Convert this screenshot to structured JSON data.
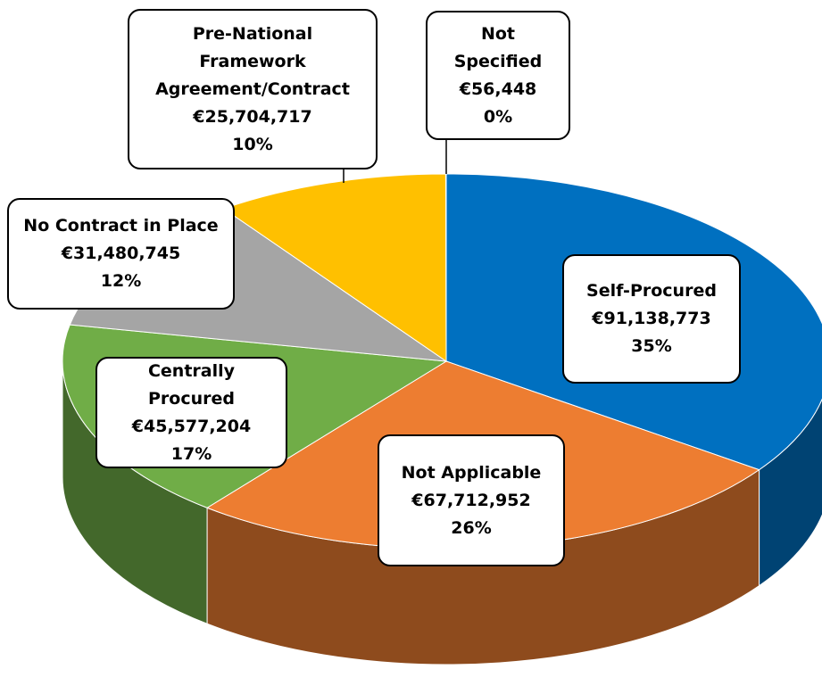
{
  "chart_data": {
    "type": "pie",
    "categories": [
      "Self-Procured",
      "Not Applicable",
      "Centrally Procured",
      "No Contract in Place",
      "Pre-National Framework Agreement/Contract",
      "Not Specified"
    ],
    "values": [
      91138773,
      67712952,
      45577204,
      31480745,
      25704717,
      56448
    ],
    "value_labels": [
      "€91,138,773",
      "€67,712,952",
      "€45,577,204",
      "€31,480,745",
      "€25,704,717",
      "€56,448"
    ],
    "percent_labels": [
      "35%",
      "26%",
      "17%",
      "12%",
      "10%",
      "0%"
    ],
    "colors": [
      "#0070c0",
      "#ed7d31",
      "#70ad47",
      "#a5a5a5",
      "#ffc000",
      "#5b9bd5"
    ]
  }
}
